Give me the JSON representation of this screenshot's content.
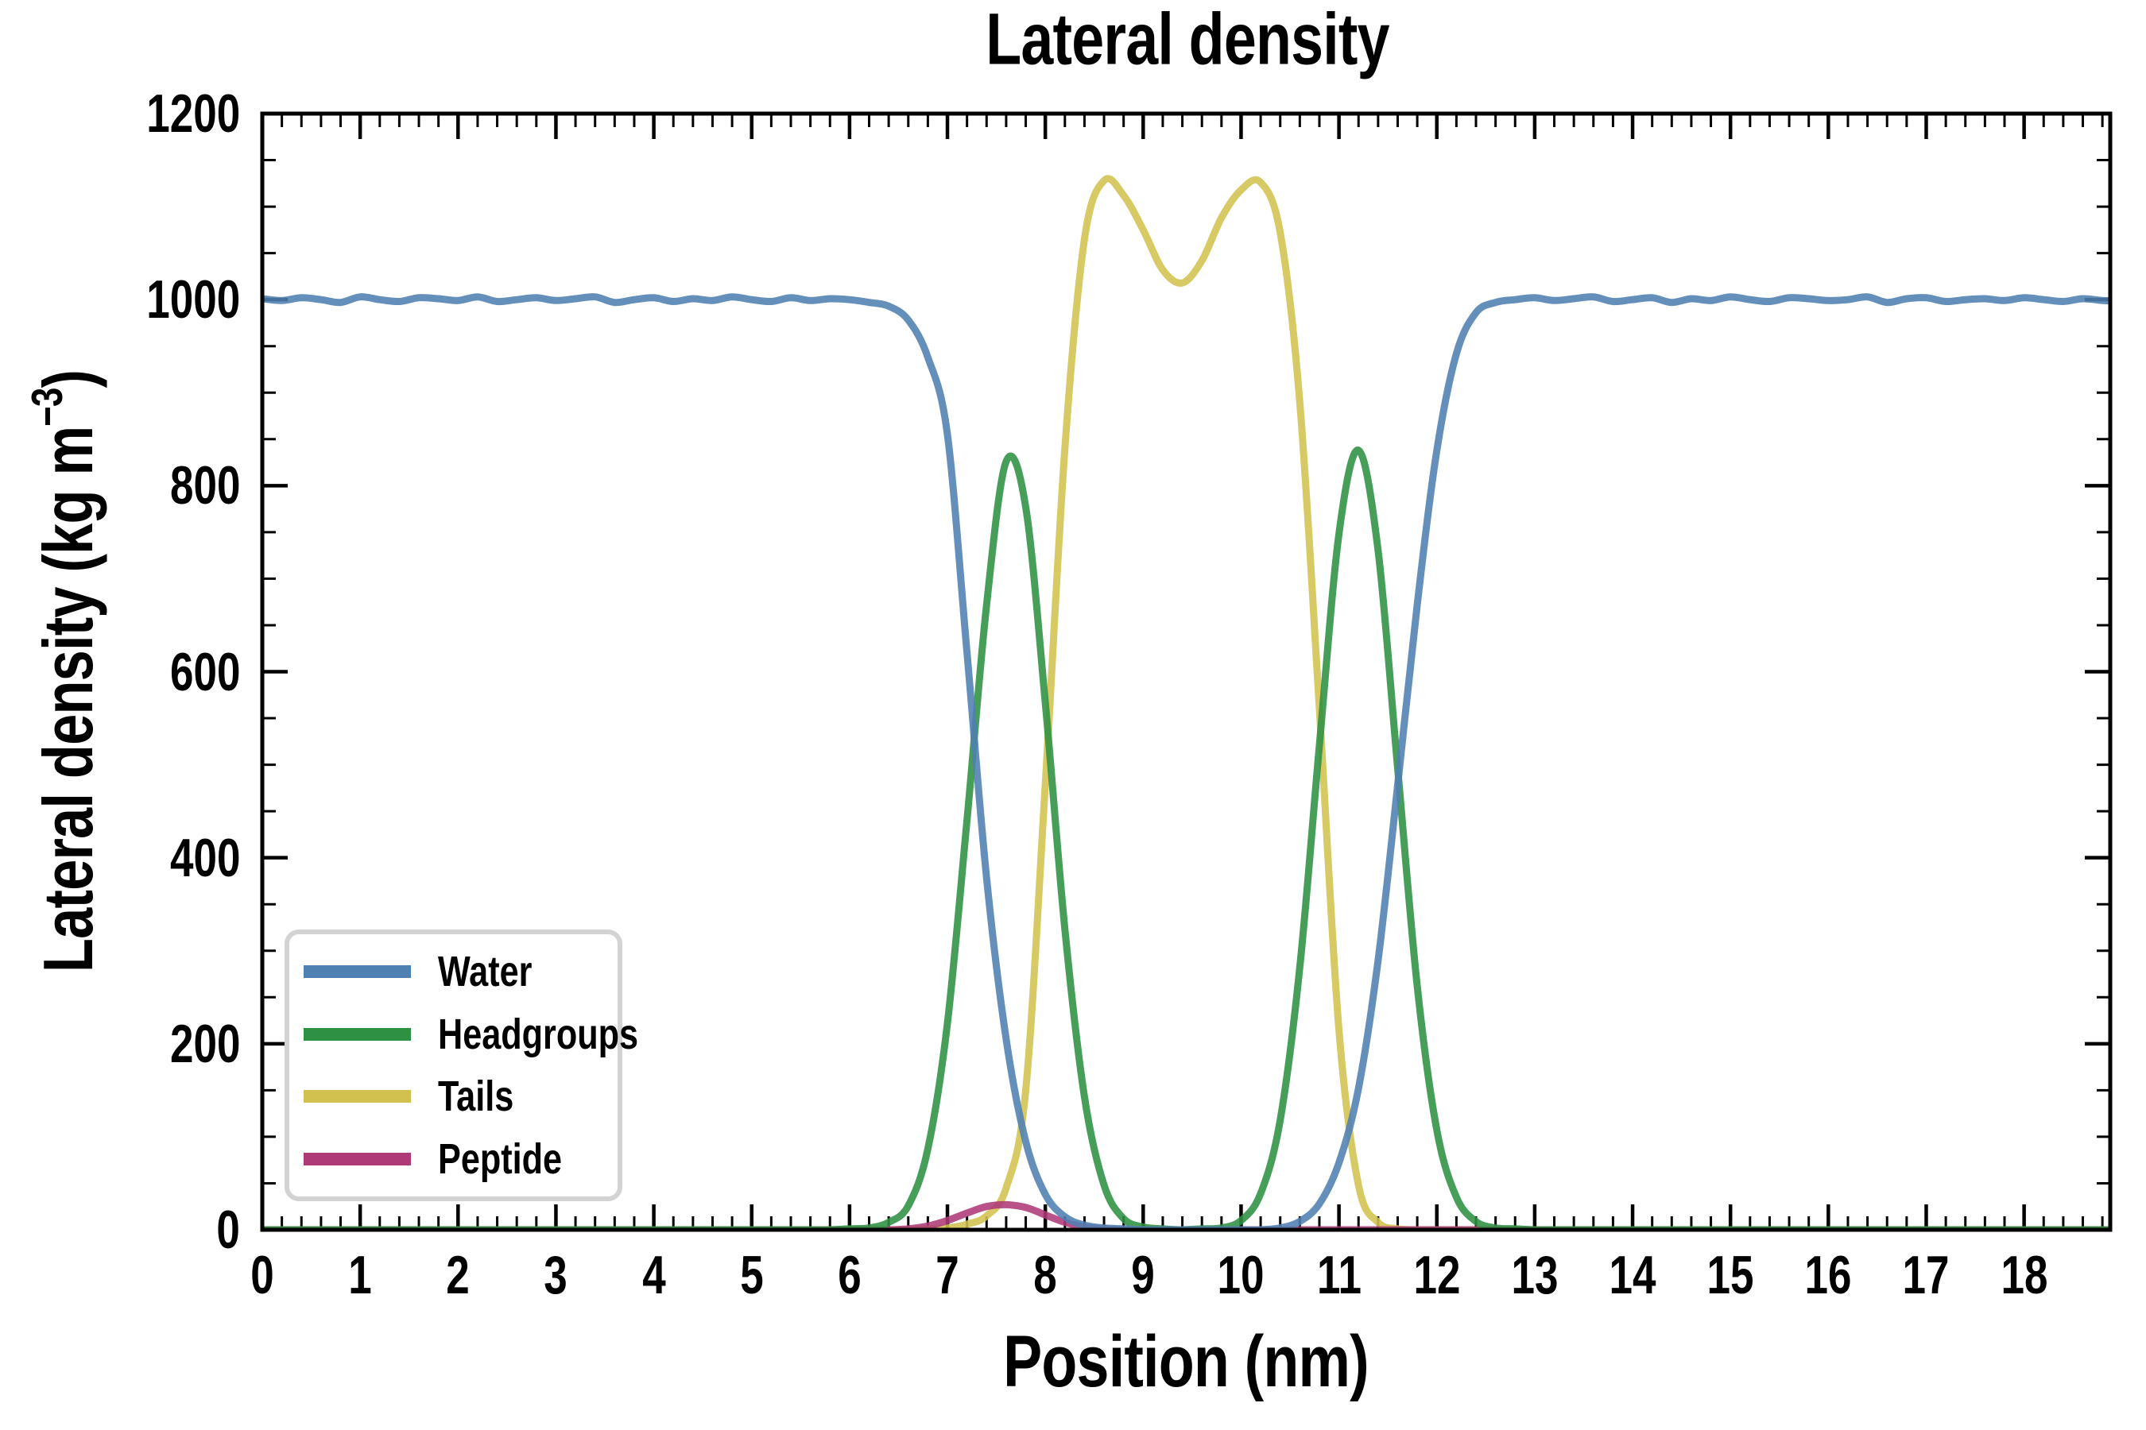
{
  "figure": {
    "title": "Lateral density"
  },
  "axes": {
    "xlabel": "Position (nm)",
    "ylabel_prefix": "Lateral density (kg m",
    "ylabel_sup": "−3",
    "ylabel_suffix": ")",
    "x_major_ticks": [
      0,
      1,
      2,
      3,
      4,
      5,
      6,
      7,
      8,
      9,
      10,
      11,
      12,
      13,
      14,
      15,
      16,
      17,
      18
    ],
    "x_tick_labels": [
      "0",
      "1",
      "2",
      "3",
      "4",
      "5",
      "6",
      "7",
      "8",
      "9",
      "10",
      "11",
      "12",
      "13",
      "14",
      "15",
      "16",
      "17",
      "18"
    ],
    "x_minor_step": 0.2,
    "y_major_ticks": [
      0,
      200,
      400,
      600,
      800,
      1000,
      1200
    ],
    "y_tick_labels": [
      "0",
      "200",
      "400",
      "600",
      "800",
      "1000",
      "1200"
    ],
    "y_minor_step": 50
  },
  "legend": {
    "items": [
      {
        "label": "Water"
      },
      {
        "label": "Headgroups"
      },
      {
        "label": "Tails"
      },
      {
        "label": "Peptide"
      }
    ]
  },
  "colors": {
    "water": "#4E80B2",
    "headgroups": "#2E9142",
    "tails": "#D2C14E",
    "peptide": "#AE3A78",
    "spine": "#000000",
    "legend_border": "#d3d3d3"
  },
  "chart_data": {
    "type": "line",
    "title": "Lateral density",
    "xlabel": "Position (nm)",
    "ylabel": "Lateral density (kg m^-3)",
    "xlim": [
      0,
      18.88
    ],
    "ylim": [
      0,
      1200
    ],
    "grid": false,
    "legend_position": "lower left",
    "line_width": 9,
    "line_opacity": 0.88,
    "x": [
      0,
      0.2,
      0.4,
      0.6,
      0.8,
      1,
      1.2,
      1.4,
      1.6,
      1.8,
      2,
      2.2,
      2.4,
      2.6,
      2.8,
      3,
      3.2,
      3.4,
      3.6,
      3.8,
      4,
      4.2,
      4.4,
      4.6,
      4.8,
      5,
      5.2,
      5.4,
      5.6,
      5.8,
      6,
      6.2,
      6.4,
      6.6,
      6.8,
      7,
      7.2,
      7.4,
      7.6,
      7.8,
      8,
      8.2,
      8.4,
      8.6,
      8.8,
      9,
      9.2,
      9.4,
      9.6,
      9.8,
      10,
      10.2,
      10.4,
      10.6,
      10.8,
      11,
      11.2,
      11.4,
      11.6,
      11.8,
      12,
      12.2,
      12.4,
      12.6,
      12.8,
      13,
      13.2,
      13.4,
      13.6,
      13.8,
      14,
      14.2,
      14.4,
      14.6,
      14.8,
      15,
      15.2,
      15.4,
      15.6,
      15.8,
      16,
      16.2,
      16.4,
      16.6,
      16.8,
      17,
      17.2,
      17.4,
      17.6,
      17.8,
      18,
      18.2,
      18.4,
      18.6,
      18.8
    ],
    "series": [
      {
        "name": "Water",
        "color": "#4E80B2",
        "values": [
          1001,
          999,
          1002,
          1000,
          997,
          1003,
          1000,
          998,
          1002,
          1001,
          999,
          1003,
          998,
          1000,
          1002,
          999,
          1001,
          1003,
          997,
          1000,
          1002,
          998,
          1001,
          999,
          1003,
          1000,
          998,
          1002,
          999,
          1001,
          1000,
          997,
          993,
          978,
          938,
          855,
          620,
          378,
          205,
          95,
          38,
          14,
          5,
          2,
          1,
          0,
          0,
          0,
          0,
          0,
          0,
          0,
          2,
          9,
          28,
          72,
          152,
          290,
          478,
          672,
          838,
          942,
          986,
          997,
          1000,
          1002,
          999,
          1001,
          1003,
          998,
          1000,
          1002,
          997,
          1001,
          999,
          1003,
          1000,
          998,
          1002,
          1001,
          999,
          1000,
          1003,
          997,
          1001,
          1002,
          998,
          1000,
          1001,
          999,
          1002,
          1000,
          998,
          1001,
          999
        ]
      },
      {
        "name": "Headgroups",
        "color": "#2E9142",
        "values": [
          0,
          0,
          0,
          0,
          0,
          0,
          0,
          0,
          0,
          0,
          0,
          0,
          0,
          0,
          0,
          0,
          0,
          0,
          0,
          0,
          0,
          0,
          0,
          0,
          0,
          0,
          0,
          0,
          0,
          0,
          1,
          2,
          8,
          26,
          87,
          222,
          441,
          672,
          826,
          777,
          566,
          323,
          143,
          48,
          12,
          3,
          1,
          0,
          1,
          2,
          10,
          39,
          118,
          282,
          521,
          748,
          838,
          730,
          496,
          262,
          107,
          35,
          9,
          2,
          1,
          0,
          0,
          0,
          0,
          0,
          0,
          0,
          0,
          0,
          0,
          0,
          0,
          0,
          0,
          0,
          0,
          0,
          0,
          0,
          0,
          0,
          0,
          0,
          0,
          0,
          0,
          0,
          0,
          0,
          0
        ]
      },
      {
        "name": "Tails",
        "color": "#D2C14E",
        "values": [
          0,
          0,
          0,
          0,
          0,
          0,
          0,
          0,
          0,
          0,
          0,
          0,
          0,
          0,
          0,
          0,
          0,
          0,
          0,
          0,
          0,
          0,
          0,
          0,
          0,
          0,
          0,
          0,
          0,
          0,
          0,
          0,
          0,
          0,
          1,
          2,
          6,
          15,
          45,
          150,
          480,
          840,
          1065,
          1128,
          1112,
          1075,
          1032,
          1018,
          1042,
          1088,
          1118,
          1126,
          1072,
          890,
          560,
          215,
          48,
          8,
          1,
          0,
          0,
          0,
          0,
          0,
          0,
          0,
          0,
          0,
          0,
          0,
          0,
          0,
          0,
          0,
          0,
          0,
          0,
          0,
          0,
          0,
          0,
          0,
          0,
          0,
          0,
          0,
          0,
          0,
          0,
          0,
          0,
          0,
          0,
          0,
          0
        ]
      },
      {
        "name": "Peptide",
        "color": "#AE3A78",
        "values": [
          0,
          0,
          0,
          0,
          0,
          0,
          0,
          0,
          0,
          0,
          0,
          0,
          0,
          0,
          0,
          0,
          0,
          0,
          0,
          0,
          0,
          0,
          0,
          0,
          0,
          0,
          0,
          0,
          0,
          0,
          0,
          0,
          0,
          1,
          4,
          10,
          18,
          25,
          27,
          24,
          16,
          8,
          3,
          1,
          0,
          0,
          0,
          0,
          0,
          0,
          0,
          0,
          0,
          0,
          0,
          0,
          0,
          0,
          0,
          0,
          0,
          0,
          0,
          0,
          0,
          0,
          0,
          0,
          0,
          0,
          0,
          0,
          0,
          0,
          0,
          0,
          0,
          0,
          0,
          0,
          0,
          0,
          0,
          0,
          0,
          0,
          0,
          0,
          0,
          0,
          0,
          0,
          0,
          0,
          0
        ]
      }
    ]
  }
}
